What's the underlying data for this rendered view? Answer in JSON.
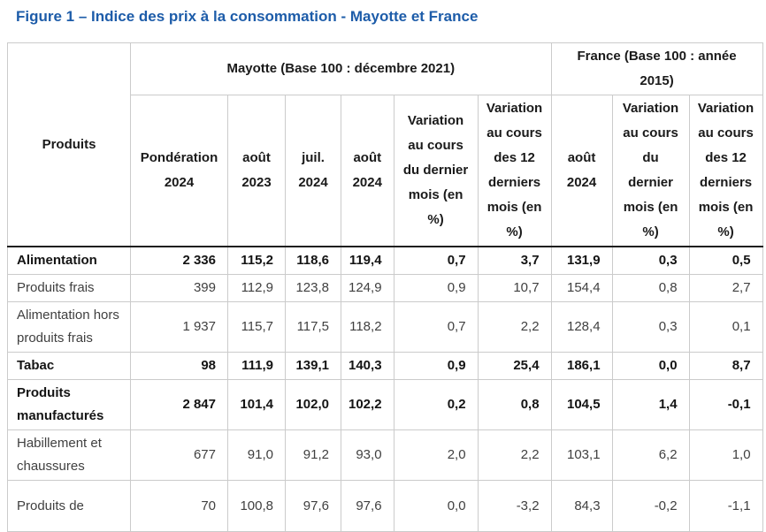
{
  "title": "Figure 1 – Indice des prix à la consommation - Mayotte et France",
  "chart_data": {
    "type": "table",
    "title": "Figure 1 – Indice des prix à la consommation - Mayotte et France",
    "corner_label": "Produits",
    "column_groups": [
      {
        "label": "Mayotte (Base 100 : décembre 2021)",
        "colspan": 6
      },
      {
        "label": "France (Base 100 : année 2015)",
        "colspan": 3
      }
    ],
    "columns": [
      {
        "id": "ponderation-2024",
        "label": "Pondération 2024"
      },
      {
        "id": "aout-2023",
        "label": "août 2023"
      },
      {
        "id": "juil-2024",
        "label": "juil. 2024"
      },
      {
        "id": "aout-2024",
        "label": "août 2024"
      },
      {
        "id": "variation-dernier-mois-mayotte",
        "label": "Variation au cours du dernier mois (en %)"
      },
      {
        "id": "variation-12-mois-mayotte",
        "label": "Variation au cours des 12 derniers mois (en %)"
      },
      {
        "id": "aout-2024-france",
        "label": "août 2024"
      },
      {
        "id": "variation-dernier-mois-france",
        "label": "Variation au cours du dernier mois (en %)"
      },
      {
        "id": "variation-12-mois-france",
        "label": "Variation au cours des 12 derniers mois (en %)"
      }
    ],
    "rows": [
      {
        "label": "Alimentation",
        "bold": true,
        "values": [
          "2 336",
          "115,2",
          "118,6",
          "119,4",
          "0,7",
          "3,7",
          "131,9",
          "0,3",
          "0,5"
        ]
      },
      {
        "label": "Produits frais",
        "bold": false,
        "values": [
          "399",
          "112,9",
          "123,8",
          "124,9",
          "0,9",
          "10,7",
          "154,4",
          "0,8",
          "2,7"
        ]
      },
      {
        "label": "Alimentation hors produits frais",
        "bold": false,
        "values": [
          "1 937",
          "115,7",
          "117,5",
          "118,2",
          "0,7",
          "2,2",
          "128,4",
          "0,3",
          "0,1"
        ]
      },
      {
        "label": "Tabac",
        "bold": true,
        "values": [
          "98",
          "111,9",
          "139,1",
          "140,3",
          "0,9",
          "25,4",
          "186,1",
          "0,0",
          "8,7"
        ]
      },
      {
        "label": "Produits manufacturés",
        "bold": true,
        "values": [
          "2 847",
          "101,4",
          "102,0",
          "102,2",
          "0,2",
          "0,8",
          "104,5",
          "1,4",
          "-0,1"
        ]
      },
      {
        "label": "Habillement et chaussures",
        "bold": false,
        "values": [
          "677",
          "91,0",
          "91,2",
          "93,0",
          "2,0",
          "2,2",
          "103,1",
          "6,2",
          "1,0"
        ]
      },
      {
        "label": "Produits de",
        "bold": false,
        "values": [
          "70",
          "100,8",
          "97,6",
          "97,6",
          "0,0",
          "-3,2",
          "84,3",
          "-0,2",
          "-1,1"
        ]
      }
    ]
  }
}
